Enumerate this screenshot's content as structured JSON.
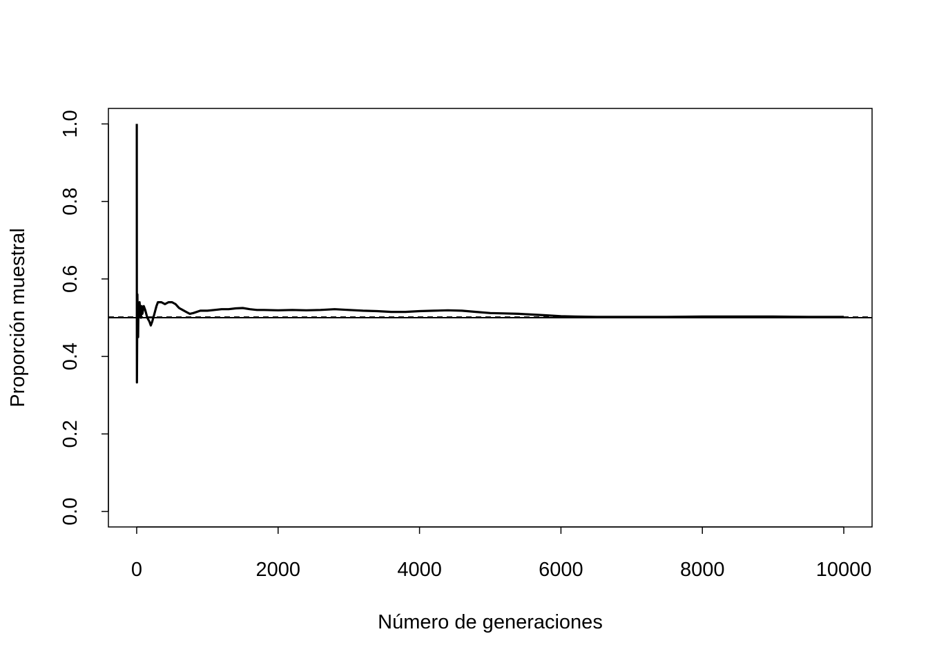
{
  "chart_data": {
    "type": "line",
    "title": "",
    "xlabel": "Número de generaciones",
    "ylabel": "Proporción muestral",
    "xlim": [
      -400,
      10400
    ],
    "ylim": [
      -0.04,
      1.04
    ],
    "x_ticks": [
      0,
      2000,
      4000,
      6000,
      8000,
      10000
    ],
    "x_tick_labels": [
      "0",
      "2000",
      "4000",
      "6000",
      "8000",
      "10000"
    ],
    "y_ticks": [
      0.0,
      0.2,
      0.4,
      0.6,
      0.8,
      1.0
    ],
    "y_tick_labels": [
      "0.0",
      "0.2",
      "0.4",
      "0.6",
      "0.8",
      "1.0"
    ],
    "grid": false,
    "legend": "none",
    "series": [
      {
        "style": "solid-thick",
        "color": "#000000",
        "x": [
          1,
          2,
          3,
          5,
          8,
          10,
          15,
          20,
          25,
          30,
          40,
          50,
          60,
          70,
          80,
          100,
          120,
          150,
          180,
          200,
          220,
          250,
          280,
          300,
          350,
          400,
          450,
          500,
          550,
          600,
          650,
          700,
          750,
          800,
          900,
          1000,
          1100,
          1200,
          1300,
          1400,
          1500,
          1600,
          1700,
          1800,
          2000,
          2200,
          2400,
          2600,
          2800,
          3000,
          3200,
          3400,
          3600,
          3800,
          4000,
          4200,
          4400,
          4600,
          4800,
          5000,
          5200,
          5400,
          5600,
          5800,
          6000,
          6200,
          6500,
          7000,
          7500,
          8000,
          8500,
          9000,
          9500,
          10000
        ],
        "y": [
          1.0,
          0.5,
          0.333,
          0.4,
          0.5,
          0.56,
          0.47,
          0.45,
          0.52,
          0.5,
          0.54,
          0.52,
          0.5,
          0.53,
          0.51,
          0.53,
          0.52,
          0.5,
          0.49,
          0.48,
          0.49,
          0.51,
          0.53,
          0.54,
          0.54,
          0.535,
          0.54,
          0.54,
          0.535,
          0.525,
          0.52,
          0.515,
          0.51,
          0.512,
          0.518,
          0.518,
          0.52,
          0.522,
          0.522,
          0.524,
          0.525,
          0.522,
          0.52,
          0.52,
          0.519,
          0.52,
          0.519,
          0.52,
          0.522,
          0.52,
          0.518,
          0.517,
          0.515,
          0.515,
          0.517,
          0.518,
          0.519,
          0.518,
          0.515,
          0.512,
          0.511,
          0.51,
          0.508,
          0.506,
          0.504,
          0.503,
          0.502,
          0.502,
          0.502,
          0.503,
          0.503,
          0.503,
          0.502,
          0.502
        ]
      }
    ],
    "reference_lines": [
      {
        "orientation": "horizontal",
        "y": 0.5,
        "style": "solid"
      },
      {
        "orientation": "horizontal",
        "y": 0.502,
        "style": "dashed"
      }
    ]
  }
}
